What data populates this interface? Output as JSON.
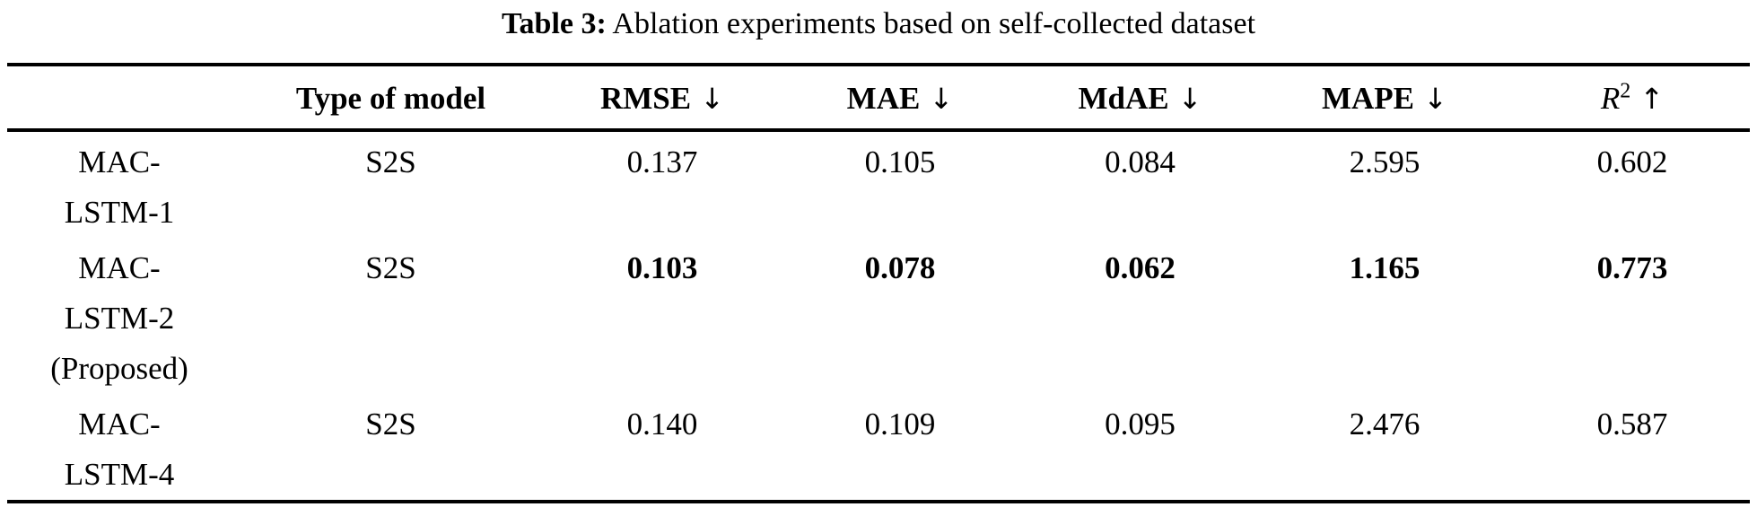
{
  "caption": {
    "prefix": "Table 3:",
    "text": " Ablation experiments based on self-collected dataset"
  },
  "table": {
    "columns": [
      {
        "label": "",
        "arrow": "",
        "sup": "",
        "italic": false
      },
      {
        "label": "Type of model",
        "arrow": "",
        "sup": "",
        "italic": false
      },
      {
        "label": "RMSE",
        "arrow": "↓",
        "sup": "",
        "italic": false
      },
      {
        "label": "MAE",
        "arrow": "↓",
        "sup": "",
        "italic": false
      },
      {
        "label": "MdAE",
        "arrow": "↓",
        "sup": "",
        "italic": false
      },
      {
        "label": "MAPE",
        "arrow": "↓",
        "sup": "",
        "italic": false
      },
      {
        "label": "R",
        "arrow": "↑",
        "sup": "2",
        "italic": true
      }
    ],
    "rows": [
      {
        "model_lines": [
          "MAC-",
          "LSTM-1"
        ],
        "type": "S2S",
        "values": [
          "0.137",
          "0.105",
          "0.084",
          "2.595",
          "0.602"
        ],
        "bold_values": false
      },
      {
        "model_lines": [
          "MAC-",
          "LSTM-2",
          "(Proposed)"
        ],
        "type": "S2S",
        "values": [
          "0.103",
          "0.078",
          "0.062",
          "1.165",
          "0.773"
        ],
        "bold_values": true
      },
      {
        "model_lines": [
          "MAC-",
          "LSTM-4"
        ],
        "type": "S2S",
        "values": [
          "0.140",
          "0.109",
          "0.095",
          "2.476",
          "0.587"
        ],
        "bold_values": false
      }
    ]
  }
}
